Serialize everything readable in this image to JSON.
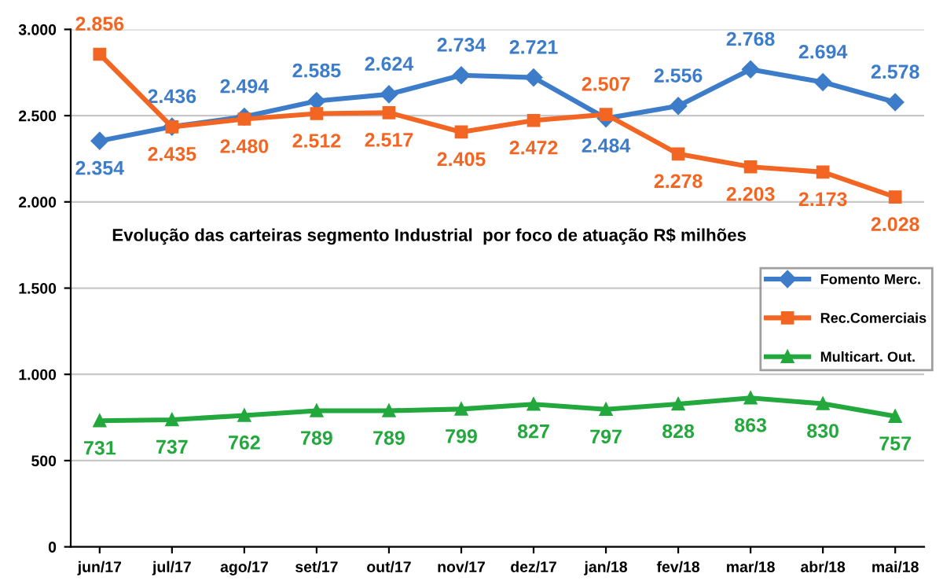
{
  "chart_data": {
    "type": "line",
    "title": "Evolução das carteiras segmento Industrial  por foco de atuação R$ milhões",
    "categories": [
      "jun/17",
      "jul/17",
      "ago/17",
      "set/17",
      "out/17",
      "nov/17",
      "dez/17",
      "jan/18",
      "fev/18",
      "mar/18",
      "abr/18",
      "mai/18"
    ],
    "series": [
      {
        "name": "Fomento Merc.",
        "color": "#3d7cc9",
        "marker": "diamond",
        "values": [
          2354,
          2436,
          2494,
          2585,
          2624,
          2734,
          2721,
          2484,
          2556,
          2768,
          2694,
          2578
        ],
        "value_labels": [
          "2.354",
          "2.436",
          "2.494",
          "2.585",
          "2.624",
          "2.734",
          "2.721",
          "2.484",
          "2.556",
          "2.768",
          "2.694",
          "2.578"
        ]
      },
      {
        "name": "Rec.Comerciais",
        "color": "#f26522",
        "marker": "square",
        "values": [
          2856,
          2435,
          2480,
          2512,
          2517,
          2405,
          2472,
          2507,
          2278,
          2203,
          2173,
          2028
        ],
        "value_labels": [
          "2.856",
          "2.435",
          "2.480",
          "2.512",
          "2.517",
          "2.405",
          "2.472",
          "2.507",
          "2.278",
          "2.203",
          "2.173",
          "2.028"
        ]
      },
      {
        "name": "Multicart. Out.",
        "color": "#22a83c",
        "marker": "triangle",
        "values": [
          731,
          737,
          762,
          789,
          789,
          799,
          827,
          797,
          828,
          863,
          830,
          757
        ],
        "value_labels": [
          "731",
          "737",
          "762",
          "789",
          "789",
          "799",
          "827",
          "797",
          "828",
          "863",
          "830",
          "757"
        ]
      }
    ],
    "ylim": [
      0,
      3000
    ],
    "yticks": [
      0,
      500,
      {
        "value": 1000,
        "label": "1.000"
      },
      {
        "value": 1500,
        "label": "1.500"
      },
      {
        "value": 2000,
        "label": "2.000"
      },
      {
        "value": 2500,
        "label": "2.500"
      },
      {
        "value": 3000,
        "label": "3.000"
      }
    ],
    "grid": "y",
    "legend": "right",
    "line_style": "solid"
  }
}
